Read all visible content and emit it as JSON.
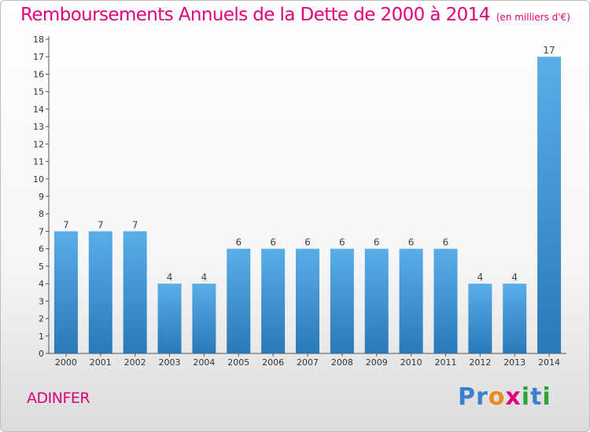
{
  "header": {
    "title": "Remboursements Annuels de la Dette de 2000 à 2014",
    "unit": "(en milliers d'€)"
  },
  "footer": {
    "commune": "ADINFER",
    "logo_letters": [
      {
        "ch": "P",
        "color": "#3a7fd0"
      },
      {
        "ch": "r",
        "color": "#3a7fd0"
      },
      {
        "ch": "o",
        "color": "#ea8a1c"
      },
      {
        "ch": "x",
        "color": "#e0007a"
      },
      {
        "ch": "i",
        "color": "#2aa53a"
      },
      {
        "ch": "t",
        "color": "#3a7fd0"
      },
      {
        "ch": "i",
        "color": "#2aa53a"
      }
    ]
  },
  "colors": {
    "title": "#e0007a",
    "bar_top": "#5aaee8",
    "bar_bottom": "#2a78b8"
  },
  "chart_data": {
    "type": "bar",
    "categories": [
      "2000",
      "2001",
      "2002",
      "2003",
      "2004",
      "2005",
      "2006",
      "2007",
      "2008",
      "2009",
      "2010",
      "2011",
      "2012",
      "2013",
      "2014"
    ],
    "values": [
      7,
      7,
      7,
      4,
      4,
      6,
      6,
      6,
      6,
      6,
      6,
      6,
      4,
      4,
      17
    ],
    "ylim": [
      0,
      18
    ],
    "yticks": [
      0,
      1,
      2,
      3,
      4,
      5,
      6,
      7,
      8,
      9,
      10,
      11,
      12,
      13,
      14,
      15,
      16,
      17,
      18
    ],
    "grid": false
  }
}
